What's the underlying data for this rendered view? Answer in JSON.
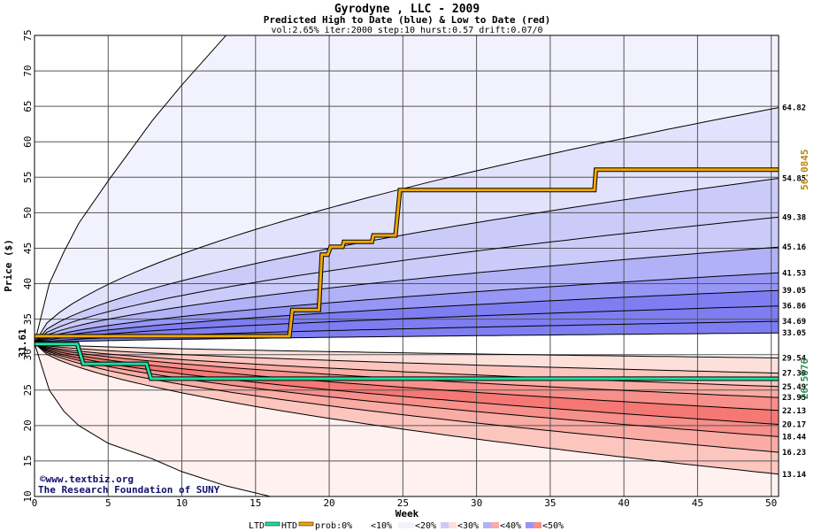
{
  "chart_data": {
    "type": "area",
    "title": "Gyrodyne , LLC - 2009",
    "subtitle": "Predicted High to Date (blue) &  Low to Date (red)",
    "params": "vol:2.65% iter:2000 step:10 hurst:0.57 drift:0.07/0",
    "xlabel": "Week",
    "ylabel": "Price ($)",
    "xlim": [
      0,
      50.5
    ],
    "ylim": [
      10,
      75
    ],
    "x_ticks": [
      0,
      5,
      10,
      15,
      20,
      25,
      30,
      35,
      40,
      45,
      50
    ],
    "y_ticks": [
      10,
      15,
      20,
      25,
      30,
      35,
      40,
      45,
      50,
      55,
      60,
      65,
      70,
      75
    ],
    "grid": true,
    "start_price": 31.61,
    "start_price_label": "31.61",
    "colors": {
      "blue_bands": [
        "#f2f2ff",
        "#e2e2fd",
        "#cbcbfa",
        "#b1b1f7",
        "#9696f5",
        "#7e7ef2"
      ],
      "red_bands": [
        "#fff1ef",
        "#fde0da",
        "#fcc6bf",
        "#f9aba4",
        "#f78f8a",
        "#f57874"
      ],
      "htd_line": "#f0a800",
      "ltd_line": "#19e0a0",
      "htd_label": "#b8860b",
      "ltd_label": "#2e8b57"
    },
    "blue_contours": [
      {
        "end": 64.82,
        "label": "64.82"
      },
      {
        "end": 54.85,
        "label": "54.85"
      },
      {
        "end": 49.38,
        "label": "49.38"
      },
      {
        "end": 45.16,
        "label": "45.16"
      },
      {
        "end": 41.53,
        "label": "41.53"
      },
      {
        "end": 39.05,
        "label": "39.05"
      },
      {
        "end": 36.86,
        "label": "36.86"
      },
      {
        "end": 34.69,
        "label": "34.69"
      },
      {
        "end": 33.05,
        "label": "33.05"
      }
    ],
    "red_contours": [
      {
        "end": 29.54,
        "label": "29.54"
      },
      {
        "end": 27.39,
        "label": "27.39"
      },
      {
        "end": 25.49,
        "label": "25.49"
      },
      {
        "end": 23.95,
        "label": "23.95"
      },
      {
        "end": 22.13,
        "label": "22.13"
      },
      {
        "end": 20.17,
        "label": "20.17"
      },
      {
        "end": 18.44,
        "label": "18.44"
      },
      {
        "end": 16.23,
        "label": "16.23"
      },
      {
        "end": 13.14,
        "label": "13.14"
      }
    ],
    "outer_high_curve": {
      "x": [
        0,
        1,
        2,
        3,
        5,
        8,
        10,
        13
      ],
      "y": [
        31.61,
        40,
        44.5,
        48.5,
        54.5,
        63,
        68,
        75
      ]
    },
    "outer_low_curve": {
      "x": [
        0,
        1,
        2,
        3,
        5,
        8,
        10,
        13,
        16
      ],
      "y": [
        31.61,
        25,
        22,
        20,
        17.5,
        15.3,
        13.5,
        11.5,
        10
      ]
    },
    "htd_series": {
      "name": "HTD",
      "x": [
        0,
        17.3,
        17.5,
        19.3,
        19.5,
        19.9,
        20.1,
        20.9,
        21.0,
        22.9,
        23.0,
        24.5,
        24.8,
        38.0,
        38.1,
        50.5
      ],
      "y": [
        32.6,
        32.6,
        36.3,
        36.3,
        44.1,
        44.1,
        45.2,
        45.2,
        45.9,
        45.9,
        46.8,
        46.8,
        53.2,
        53.2,
        56.08,
        56.08
      ]
    },
    "htd_end_label": "56.0845",
    "ltd_series": {
      "name": "LTD",
      "x": [
        0,
        2.9,
        3.3,
        7.6,
        7.9,
        40,
        50.5
      ],
      "y": [
        31.5,
        31.5,
        28.7,
        28.7,
        26.6,
        26.6,
        26.59
      ]
    },
    "ltd_end_label": "26.5876",
    "legend": {
      "placement": "bottom",
      "items": [
        "LTD",
        "HTD",
        "prob:0%",
        "<10%",
        "<20%",
        "<30%",
        "<40%",
        "<50%"
      ]
    },
    "credit": [
      "©www.textbiz.org",
      "The Research Foundation of SUNY"
    ]
  }
}
